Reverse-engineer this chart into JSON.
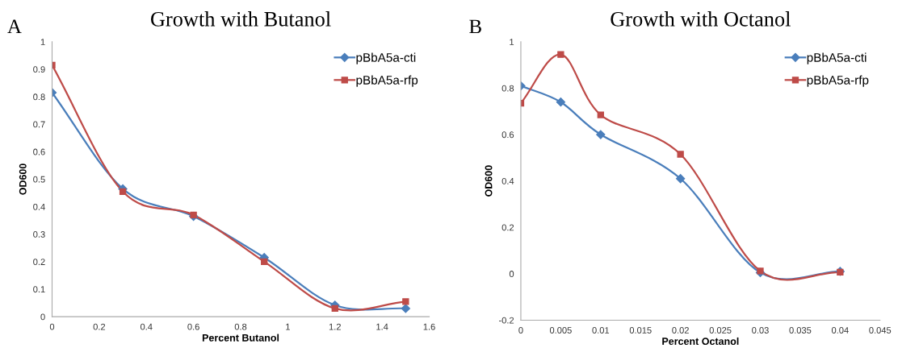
{
  "chart_data": [
    {
      "type": "line",
      "title": "Growth with Butanol",
      "annotations": [
        "A"
      ],
      "xlabel": "Percent Butanol",
      "ylabel": "OD600",
      "x": [
        0,
        0.3,
        0.6,
        0.9,
        1.2,
        1.5
      ],
      "series": [
        {
          "name": "pBbA5a-cti",
          "color": "#4a7ebb",
          "marker": "diamond",
          "values": [
            0.815,
            0.465,
            0.365,
            0.215,
            0.042,
            0.03
          ]
        },
        {
          "name": "pBbA5a-rfp",
          "color": "#be4b48",
          "marker": "square",
          "values": [
            0.915,
            0.455,
            0.37,
            0.2,
            0.03,
            0.055
          ]
        }
      ],
      "xlim": [
        0,
        1.6
      ],
      "xticks": [
        0,
        0.2,
        0.4,
        0.6,
        0.8,
        1,
        1.2,
        1.4,
        1.6
      ],
      "ylim": [
        0,
        1
      ],
      "yticks": [
        0,
        0.1,
        0.2,
        0.3,
        0.4,
        0.5,
        0.6,
        0.7,
        0.8,
        0.9,
        1
      ],
      "legend": "top right",
      "grid": false,
      "line_style": "solid"
    },
    {
      "type": "line",
      "title": "Growth with Octanol",
      "annotations": [
        "B"
      ],
      "xlabel": "Percent Octanol",
      "ylabel": "OD600",
      "x": [
        0,
        0.005,
        0.01,
        0.02,
        0.03,
        0.04
      ],
      "series": [
        {
          "name": "pBbA5a-cti",
          "color": "#4a7ebb",
          "marker": "diamond",
          "values": [
            0.81,
            0.74,
            0.6,
            0.41,
            0.005,
            0.01
          ]
        },
        {
          "name": "pBbA5a-rfp",
          "color": "#be4b48",
          "marker": "square",
          "values": [
            0.735,
            0.945,
            0.685,
            0.515,
            0.012,
            0.007
          ]
        }
      ],
      "xlim": [
        0,
        0.045
      ],
      "xticks": [
        0,
        0.005,
        0.01,
        0.015,
        0.02,
        0.025,
        0.03,
        0.035,
        0.04,
        0.045
      ],
      "ylim": [
        -0.2,
        1
      ],
      "yticks": [
        -0.2,
        0,
        0.2,
        0.4,
        0.6,
        0.8,
        1
      ],
      "legend": "top right",
      "grid": false,
      "line_style": "solid"
    }
  ]
}
